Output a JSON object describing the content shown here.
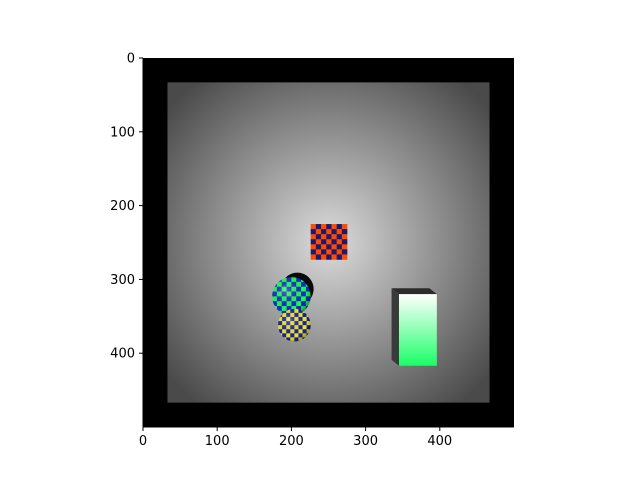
{
  "chart_data": {
    "type": "image",
    "title": "",
    "xlabel": "",
    "ylabel": "",
    "xlim": [
      0,
      500
    ],
    "ylim": [
      500,
      0
    ],
    "y_axis_inverted": true,
    "x_ticks": [
      0,
      100,
      200,
      300,
      400
    ],
    "y_ticks": [
      0,
      100,
      200,
      300,
      400
    ],
    "grid": false,
    "legend": "none",
    "scene": {
      "background": {
        "outer_border_color": "#000000",
        "floor_center_color": "#dcdcdc",
        "floor_edge_color": "#4a4a4a"
      },
      "floor_rect": {
        "x0": 33,
        "y0": 33,
        "x1": 467,
        "y1": 467
      },
      "objects": [
        {
          "name": "checkered-square",
          "shape": "square",
          "pattern": "checkerboard",
          "colors": [
            "#ff4a00",
            "#1a1a6e"
          ],
          "x0": 226,
          "y0": 225,
          "x1": 275,
          "y1": 273,
          "cells": 7
        },
        {
          "name": "green-blue-checkered-sphere",
          "shape": "circle",
          "pattern": "checkerboard",
          "colors": [
            "#19ff4d",
            "#1a2acc"
          ],
          "cx": 200,
          "cy": 323,
          "r": 26,
          "shadow_cx": 208,
          "shadow_cy": 313,
          "shadow_r": 22
        },
        {
          "name": "yellow-blue-checkered-sphere",
          "shape": "circle",
          "pattern": "checkerboard",
          "colors": [
            "#f2ea1a",
            "#1a1fb0"
          ],
          "cx": 204,
          "cy": 362,
          "r": 22
        },
        {
          "name": "gradient-box",
          "shape": "box",
          "colors": [
            "#ffffff",
            "#19ff66"
          ],
          "side_color": "#3a3a3a",
          "x0": 345,
          "y0": 320,
          "x1": 396,
          "y1": 417,
          "depth_x": 10,
          "depth_y": 8
        }
      ]
    }
  }
}
